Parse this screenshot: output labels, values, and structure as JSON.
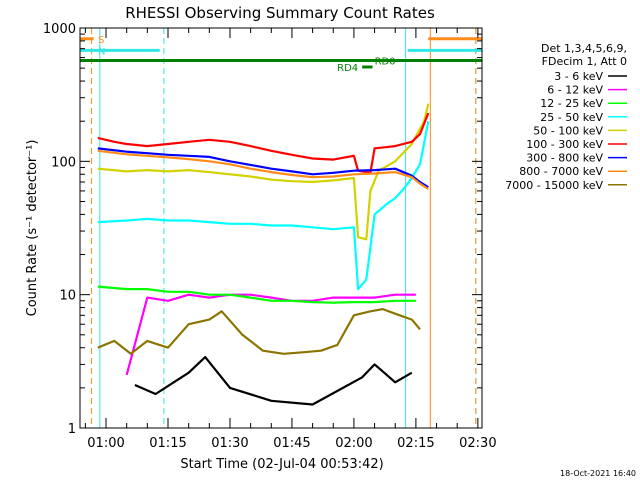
{
  "title": "RHESSI Observing Summary Count Rates",
  "xlabel": "Start Time (02-Jul-04 00:53:42)",
  "ylabel": "Count Rate (s⁻¹ detector⁻¹)",
  "timestamp": "18-Oct-2021 16:40",
  "legend": {
    "header1": "Det 1,3,4,5,6,9,",
    "header2": "FDecim 1, Att 0"
  },
  "chart_data": {
    "type": "line",
    "x_unit": "time (HH:MM)",
    "y_scale": "log",
    "ylim": [
      1,
      1000
    ],
    "xlim": [
      "00:53:42",
      "02:31:00"
    ],
    "xticks": [
      "01:00",
      "01:15",
      "01:30",
      "01:45",
      "02:00",
      "02:15",
      "02:30"
    ],
    "yticks": [
      "1",
      "10",
      "100",
      "1000"
    ],
    "flags": [
      {
        "label": "S",
        "color": "#ff8c1a",
        "y": 830,
        "x": [
          "00:53:42",
          "00:57:00"
        ]
      },
      {
        "label": "N",
        "color": "#33e6e6",
        "y": 680,
        "x": [
          "00:53:42",
          "01:13:00"
        ]
      },
      {
        "label": "",
        "color": "#33e6e6",
        "y": 680,
        "x": [
          "02:13:00",
          "02:31:00"
        ]
      },
      {
        "label": "",
        "color": "#ff8c1a",
        "y": 830,
        "x": [
          "02:18:00",
          "02:31:00"
        ]
      },
      {
        "label": "RD0",
        "color": "#008000",
        "y": 570,
        "x": [
          "00:53:42",
          "02:31:00"
        ]
      },
      {
        "label": "RD4",
        "color": "#008000",
        "y": 510,
        "x": [
          "02:02:00",
          "02:04:30"
        ]
      }
    ],
    "vlines": [
      {
        "x": "00:56:30",
        "color": "#ff8c1a",
        "style": "dashed"
      },
      {
        "x": "00:58:30",
        "color": "#33e6e6",
        "style": "solid"
      },
      {
        "x": "01:14:00",
        "color": "#33e6e6",
        "style": "dashed"
      },
      {
        "x": "02:12:30",
        "color": "#33e6e6",
        "style": "solid"
      },
      {
        "x": "02:18:30",
        "color": "#ff8c1a",
        "style": "solid"
      },
      {
        "x": "02:29:30",
        "color": "#33e6e6",
        "style": "dashed"
      },
      {
        "x": "02:29:30",
        "color": "#ff8c1a",
        "style": "dashed"
      }
    ],
    "series": [
      {
        "name": "3 - 6 keV",
        "color": "#000000",
        "x": [
          "01:07",
          "01:12",
          "01:20",
          "01:24",
          "01:30",
          "01:40",
          "01:50",
          "02:02",
          "02:05",
          "02:10",
          "02:14"
        ],
        "values": [
          2.1,
          1.8,
          2.6,
          3.4,
          2.0,
          1.6,
          1.5,
          2.4,
          3.0,
          2.2,
          2.6
        ]
      },
      {
        "name": "6 - 12 keV",
        "color": "#ff00ff",
        "x": [
          "01:05",
          "01:10",
          "01:15",
          "01:20",
          "01:25",
          "01:30",
          "01:35",
          "01:40",
          "01:45",
          "01:50",
          "01:55",
          "02:00",
          "02:05",
          "02:10",
          "02:15"
        ],
        "values": [
          2.5,
          9.5,
          9.0,
          10.0,
          9.5,
          10.0,
          10.0,
          9.5,
          9.0,
          9.0,
          9.5,
          9.5,
          9.5,
          10.0,
          10.0
        ]
      },
      {
        "name": "12 - 25 keV",
        "color": "#00ff00",
        "x": [
          "00:58",
          "01:05",
          "01:10",
          "01:15",
          "01:20",
          "01:25",
          "01:30",
          "01:35",
          "01:40",
          "01:45",
          "01:50",
          "01:55",
          "02:00",
          "02:05",
          "02:10",
          "02:15"
        ],
        "values": [
          11.5,
          11.0,
          11.0,
          10.5,
          10.5,
          10.0,
          10.0,
          9.5,
          9.0,
          9.0,
          8.8,
          8.7,
          8.8,
          8.8,
          9.0,
          9.0
        ]
      },
      {
        "name": "25 - 50 keV",
        "color": "#00ffff",
        "x": [
          "00:58",
          "01:05",
          "01:10",
          "01:15",
          "01:20",
          "01:25",
          "01:30",
          "01:35",
          "01:40",
          "01:45",
          "01:50",
          "01:55",
          "02:00",
          "02:01",
          "02:03",
          "02:05",
          "02:08",
          "02:10",
          "02:12",
          "02:14",
          "02:16",
          "02:18"
        ],
        "values": [
          35,
          36,
          37,
          36,
          36,
          35,
          34,
          34,
          33,
          33,
          32,
          31,
          32,
          11,
          13,
          40,
          48,
          53,
          62,
          75,
          95,
          200
        ]
      },
      {
        "name": "50 - 100 keV",
        "color": "#d2d200",
        "x": [
          "00:58",
          "01:05",
          "01:10",
          "01:15",
          "01:20",
          "01:25",
          "01:30",
          "01:35",
          "01:40",
          "01:45",
          "01:50",
          "01:55",
          "02:00",
          "02:01",
          "02:03",
          "02:04",
          "02:06",
          "02:10",
          "02:14",
          "02:17",
          "02:18"
        ],
        "values": [
          88,
          84,
          86,
          84,
          86,
          83,
          80,
          77,
          73,
          71,
          70,
          72,
          75,
          27,
          26,
          60,
          85,
          100,
          135,
          200,
          270
        ]
      },
      {
        "name": "100 - 300 keV",
        "color": "#ff0000",
        "x": [
          "00:58",
          "01:02",
          "01:05",
          "01:10",
          "01:15",
          "01:20",
          "01:25",
          "01:30",
          "01:35",
          "01:40",
          "01:45",
          "01:50",
          "01:55",
          "02:00",
          "02:01",
          "02:04",
          "02:05",
          "02:10",
          "02:14",
          "02:16",
          "02:18"
        ],
        "values": [
          150,
          140,
          135,
          130,
          135,
          140,
          145,
          140,
          130,
          120,
          112,
          105,
          103,
          110,
          85,
          82,
          125,
          130,
          140,
          160,
          230
        ]
      },
      {
        "name": "300 - 800 keV",
        "color": "#0000ff",
        "x": [
          "00:58",
          "01:05",
          "01:10",
          "01:15",
          "01:20",
          "01:25",
          "01:30",
          "01:35",
          "01:40",
          "01:45",
          "01:50",
          "01:55",
          "02:00",
          "02:05",
          "02:10",
          "02:14",
          "02:16",
          "02:18"
        ],
        "values": [
          125,
          118,
          115,
          112,
          110,
          108,
          100,
          94,
          88,
          84,
          80,
          82,
          85,
          86,
          88,
          78,
          70,
          64
        ]
      },
      {
        "name": "800 - 7000 keV",
        "color": "#ff8c1a",
        "x": [
          "00:58",
          "01:05",
          "01:10",
          "01:15",
          "01:20",
          "01:25",
          "01:30",
          "01:35",
          "01:40",
          "01:45",
          "01:50",
          "01:55",
          "02:00",
          "02:05",
          "02:10",
          "02:14",
          "02:16",
          "02:18"
        ],
        "values": [
          120,
          113,
          110,
          107,
          104,
          100,
          95,
          88,
          83,
          79,
          76,
          77,
          80,
          81,
          83,
          76,
          68,
          62
        ]
      },
      {
        "name": "7000 - 15000 keV",
        "color": "#8b7500",
        "x": [
          "00:58",
          "01:02",
          "01:06",
          "01:10",
          "01:15",
          "01:20",
          "01:25",
          "01:28",
          "01:33",
          "01:38",
          "01:43",
          "01:48",
          "01:52",
          "01:56",
          "02:00",
          "02:04",
          "02:07",
          "02:10",
          "02:14",
          "02:16"
        ],
        "values": [
          4.0,
          4.5,
          3.6,
          4.5,
          4.0,
          6.0,
          6.5,
          7.5,
          5.0,
          3.8,
          3.6,
          3.7,
          3.8,
          4.2,
          7.0,
          7.5,
          7.8,
          7.2,
          6.5,
          5.5
        ]
      }
    ]
  }
}
